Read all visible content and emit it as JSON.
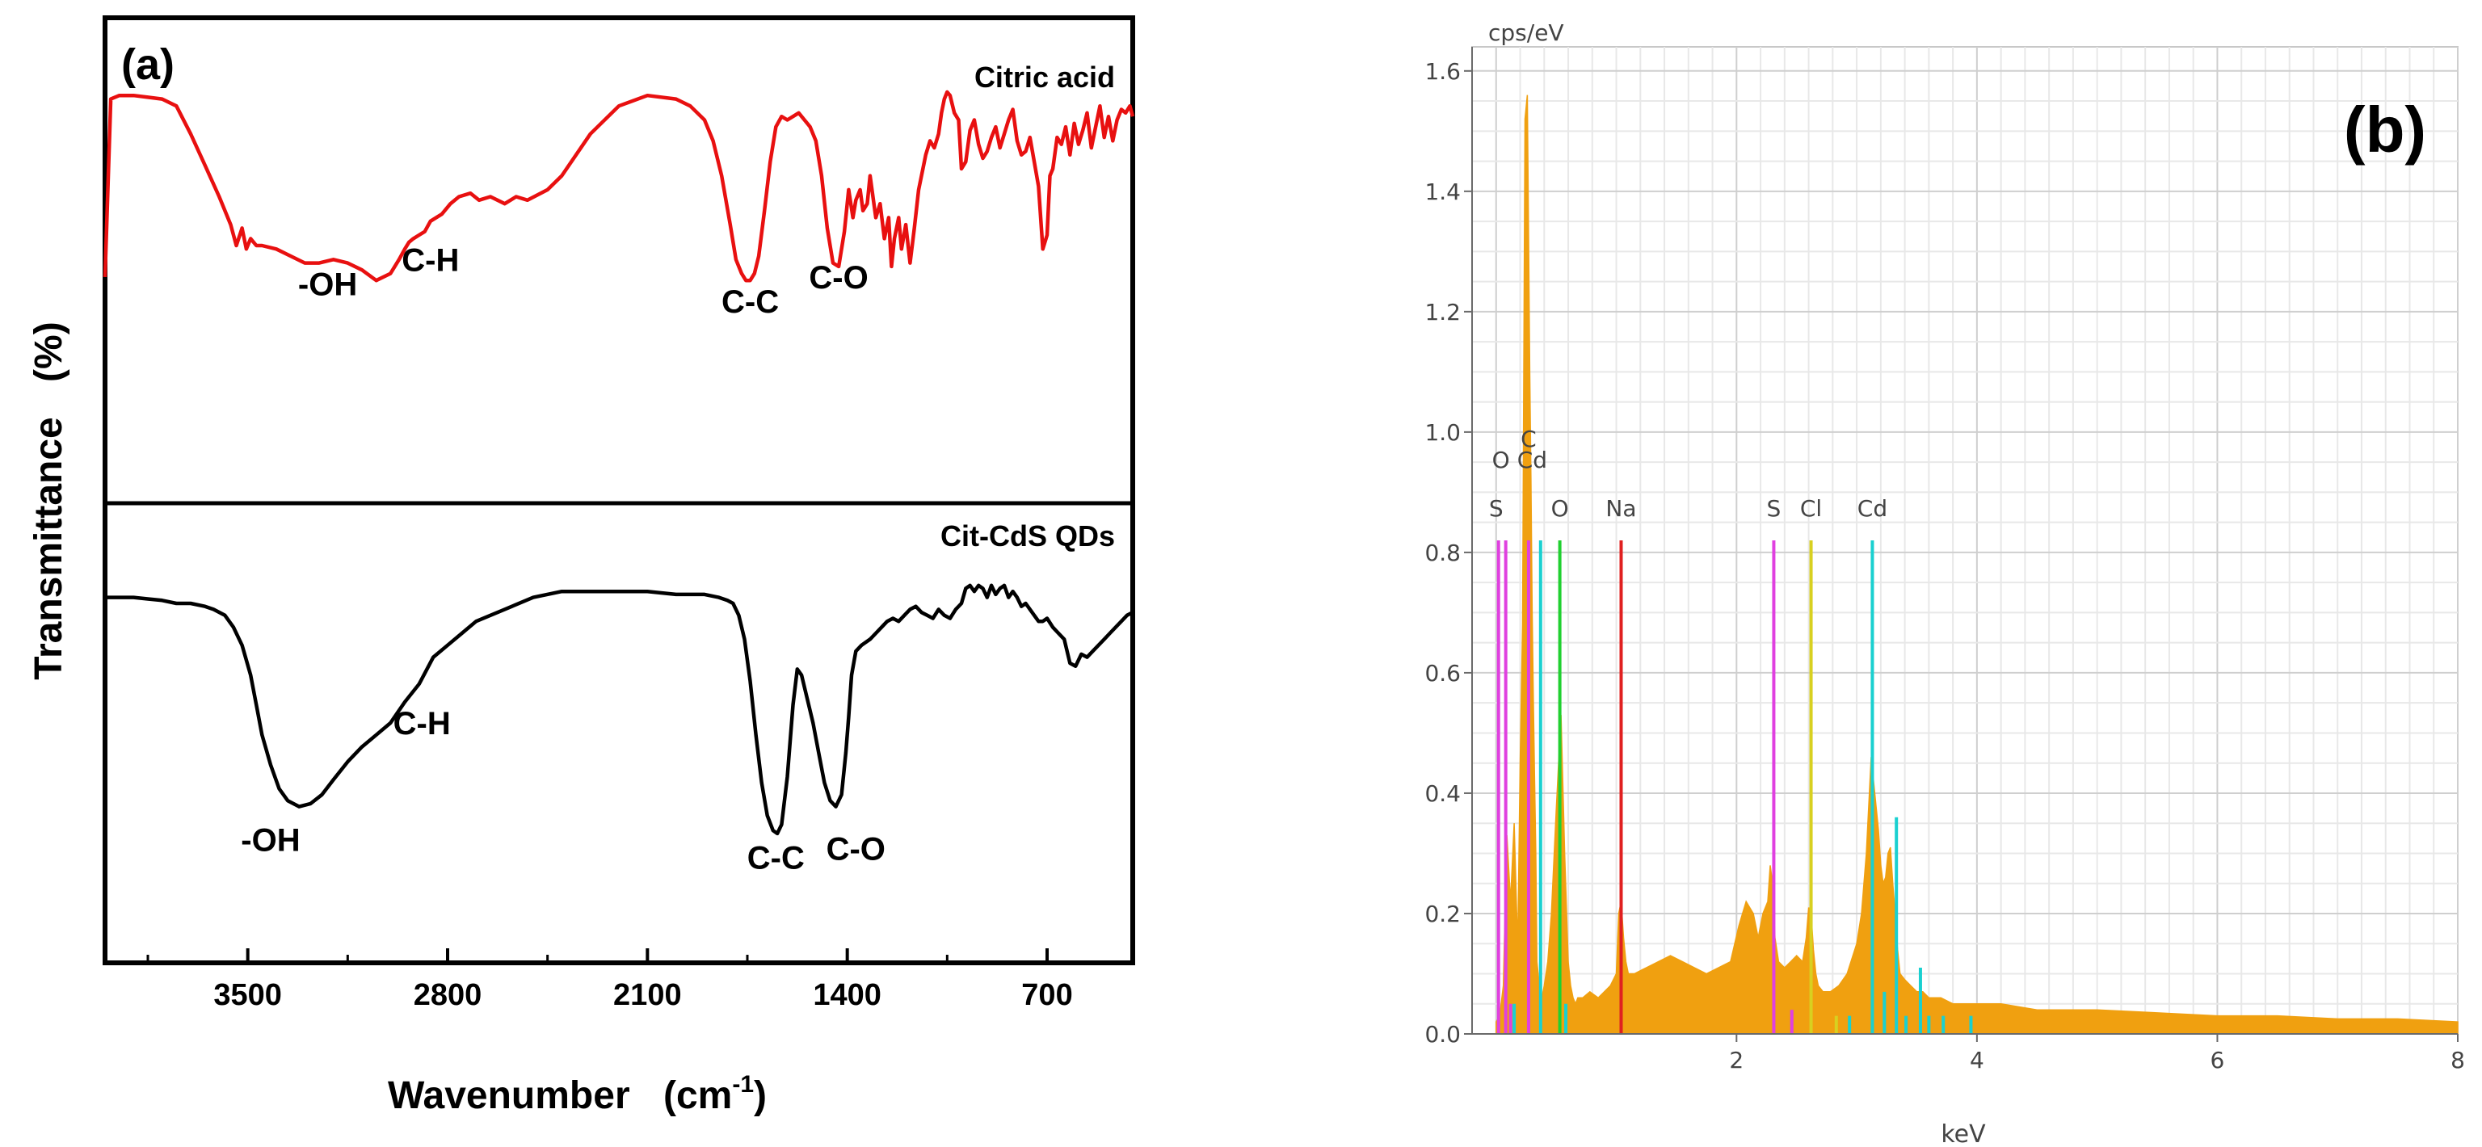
{
  "chart_data": [
    {
      "type": "line",
      "panel_label": "(a)",
      "title": "",
      "xlabel": "Wavenumber",
      "xlabel_unit": "(cm",
      "xlabel_unit_sup": "-1",
      "xlabel_unit_close": ")",
      "ylabel": "Transmittance",
      "ylabel_unit": "(%)",
      "xlim": [
        4000,
        400
      ],
      "xticks": [
        3500,
        2800,
        2100,
        1400,
        700
      ],
      "xtick_labels": [
        "3500",
        "2800",
        "2100",
        "1400",
        "700"
      ],
      "grid": false,
      "subplots": [
        {
          "name": "Citric acid",
          "color": "#e81010",
          "ylim": [
            0,
            1
          ],
          "annotations": [
            {
              "text": "-OH",
              "x": 3220,
              "y": 0.39
            },
            {
              "text": "C-H",
              "x": 2860,
              "y": 0.46
            },
            {
              "text": "C-C",
              "x": 1740,
              "y": 0.34
            },
            {
              "text": "C-O",
              "x": 1430,
              "y": 0.41
            }
          ],
          "x": [
            4000,
            3980,
            3950,
            3900,
            3850,
            3800,
            3750,
            3700,
            3650,
            3600,
            3560,
            3540,
            3520,
            3505,
            3490,
            3470,
            3450,
            3400,
            3350,
            3300,
            3250,
            3200,
            3150,
            3100,
            3050,
            3000,
            2970,
            2950,
            2935,
            2920,
            2900,
            2880,
            2860,
            2820,
            2790,
            2760,
            2720,
            2690,
            2650,
            2600,
            2560,
            2520,
            2450,
            2400,
            2300,
            2200,
            2100,
            2000,
            1950,
            1900,
            1870,
            1840,
            1810,
            1790,
            1770,
            1755,
            1740,
            1725,
            1710,
            1690,
            1670,
            1650,
            1630,
            1610,
            1590,
            1570,
            1550,
            1530,
            1510,
            1490,
            1470,
            1450,
            1430,
            1410,
            1395,
            1380,
            1370,
            1355,
            1345,
            1330,
            1320,
            1300,
            1285,
            1270,
            1255,
            1245,
            1235,
            1220,
            1210,
            1195,
            1180,
            1165,
            1150,
            1135,
            1125,
            1110,
            1095,
            1080,
            1070,
            1060,
            1050,
            1040,
            1025,
            1010,
            1000,
            985,
            970,
            955,
            940,
            925,
            910,
            895,
            880,
            865,
            850,
            835,
            820,
            805,
            790,
            775,
            760,
            745,
            730,
            715,
            700,
            690,
            680,
            665,
            650,
            635,
            620,
            605,
            590,
            575,
            560,
            545,
            530,
            515,
            500,
            485,
            470,
            455,
            440,
            425,
            410,
            400
          ],
          "y": [
            0.41,
            0.92,
            0.93,
            0.93,
            0.925,
            0.92,
            0.9,
            0.82,
            0.73,
            0.64,
            0.56,
            0.5,
            0.55,
            0.49,
            0.52,
            0.5,
            0.5,
            0.49,
            0.47,
            0.45,
            0.45,
            0.46,
            0.45,
            0.43,
            0.4,
            0.42,
            0.46,
            0.49,
            0.51,
            0.52,
            0.53,
            0.54,
            0.57,
            0.59,
            0.62,
            0.64,
            0.65,
            0.63,
            0.64,
            0.62,
            0.64,
            0.63,
            0.66,
            0.7,
            0.82,
            0.9,
            0.93,
            0.92,
            0.9,
            0.86,
            0.8,
            0.7,
            0.56,
            0.46,
            0.42,
            0.4,
            0.4,
            0.42,
            0.47,
            0.6,
            0.74,
            0.84,
            0.87,
            0.86,
            0.87,
            0.88,
            0.86,
            0.84,
            0.8,
            0.7,
            0.55,
            0.45,
            0.44,
            0.54,
            0.66,
            0.58,
            0.63,
            0.66,
            0.6,
            0.62,
            0.7,
            0.58,
            0.62,
            0.52,
            0.58,
            0.44,
            0.52,
            0.58,
            0.49,
            0.56,
            0.45,
            0.55,
            0.66,
            0.72,
            0.76,
            0.8,
            0.78,
            0.82,
            0.88,
            0.92,
            0.94,
            0.93,
            0.88,
            0.86,
            0.72,
            0.74,
            0.83,
            0.86,
            0.79,
            0.75,
            0.77,
            0.81,
            0.84,
            0.78,
            0.82,
            0.86,
            0.89,
            0.8,
            0.76,
            0.77,
            0.81,
            0.74,
            0.67,
            0.49,
            0.53,
            0.7,
            0.72,
            0.81,
            0.79,
            0.84,
            0.76,
            0.85,
            0.79,
            0.83,
            0.88,
            0.78,
            0.84,
            0.9,
            0.81,
            0.87,
            0.8,
            0.86,
            0.89,
            0.88,
            0.9,
            0.87
          ]
        },
        {
          "name": "Cit-CdS QDs",
          "color": "#000000",
          "ylim": [
            0,
            1
          ],
          "annotations": [
            {
              "text": "-OH",
              "x": 3420,
              "y": 0.11
            },
            {
              "text": "C-H",
              "x": 2890,
              "y": 0.5
            },
            {
              "text": "C-C",
              "x": 1650,
              "y": 0.05
            },
            {
              "text": "C-O",
              "x": 1370,
              "y": 0.08
            }
          ],
          "x": [
            4000,
            3950,
            3900,
            3850,
            3800,
            3750,
            3700,
            3650,
            3620,
            3580,
            3550,
            3520,
            3490,
            3470,
            3450,
            3420,
            3390,
            3360,
            3320,
            3280,
            3240,
            3200,
            3150,
            3100,
            3050,
            3000,
            2950,
            2900,
            2850,
            2800,
            2750,
            2700,
            2600,
            2500,
            2400,
            2300,
            2200,
            2100,
            2000,
            1950,
            1900,
            1850,
            1820,
            1800,
            1780,
            1760,
            1740,
            1720,
            1700,
            1680,
            1660,
            1645,
            1630,
            1610,
            1590,
            1575,
            1560,
            1540,
            1520,
            1500,
            1480,
            1460,
            1440,
            1420,
            1405,
            1395,
            1385,
            1370,
            1350,
            1320,
            1300,
            1280,
            1260,
            1240,
            1220,
            1200,
            1180,
            1160,
            1140,
            1120,
            1100,
            1080,
            1060,
            1040,
            1020,
            1000,
            985,
            970,
            955,
            940,
            925,
            910,
            895,
            880,
            865,
            850,
            835,
            820,
            805,
            790,
            775,
            760,
            745,
            730,
            715,
            700,
            680,
            660,
            640,
            620,
            600,
            580,
            560,
            540,
            520,
            500,
            480,
            460,
            440,
            420,
            400
          ],
          "y": [
            0.92,
            0.92,
            0.92,
            0.915,
            0.91,
            0.9,
            0.9,
            0.89,
            0.88,
            0.86,
            0.82,
            0.76,
            0.66,
            0.56,
            0.46,
            0.36,
            0.28,
            0.24,
            0.22,
            0.23,
            0.26,
            0.31,
            0.37,
            0.42,
            0.46,
            0.5,
            0.57,
            0.63,
            0.72,
            0.76,
            0.8,
            0.84,
            0.88,
            0.92,
            0.94,
            0.94,
            0.94,
            0.94,
            0.93,
            0.93,
            0.93,
            0.92,
            0.91,
            0.9,
            0.86,
            0.78,
            0.64,
            0.46,
            0.3,
            0.19,
            0.14,
            0.13,
            0.16,
            0.32,
            0.56,
            0.68,
            0.66,
            0.58,
            0.5,
            0.4,
            0.3,
            0.24,
            0.22,
            0.26,
            0.4,
            0.52,
            0.66,
            0.74,
            0.76,
            0.78,
            0.8,
            0.82,
            0.84,
            0.85,
            0.84,
            0.86,
            0.88,
            0.89,
            0.87,
            0.86,
            0.85,
            0.88,
            0.86,
            0.85,
            0.88,
            0.9,
            0.95,
            0.96,
            0.94,
            0.96,
            0.95,
            0.92,
            0.96,
            0.93,
            0.95,
            0.96,
            0.92,
            0.94,
            0.92,
            0.89,
            0.9,
            0.88,
            0.86,
            0.84,
            0.84,
            0.85,
            0.82,
            0.8,
            0.78,
            0.7,
            0.69,
            0.73,
            0.72,
            0.74,
            0.76,
            0.78,
            0.8,
            0.82,
            0.84,
            0.86,
            0.87
          ]
        }
      ]
    },
    {
      "type": "bar",
      "panel_label": "(b)",
      "title": "",
      "ylabel": "cps/eV",
      "xlabel": "keV",
      "xlim": [
        -0.2,
        8
      ],
      "ylim": [
        0,
        1.64
      ],
      "xticks": [
        2,
        4,
        6,
        8
      ],
      "xtick_labels": [
        "2",
        "4",
        "6",
        "8"
      ],
      "yticks": [
        0.0,
        0.2,
        0.4,
        0.6,
        0.8,
        1.0,
        1.2,
        1.4,
        1.6
      ],
      "ytick_labels": [
        "0.0",
        "0.2",
        "0.4",
        "0.6",
        "0.8",
        "1.0",
        "1.2",
        "1.4",
        "1.6"
      ],
      "grid": true,
      "spectrum_color": "#f0a010",
      "spectrum": {
        "x": [
          0.0,
          0.03,
          0.06,
          0.09,
          0.12,
          0.15,
          0.18,
          0.2,
          0.22,
          0.24,
          0.26,
          0.27,
          0.28,
          0.29,
          0.3,
          0.31,
          0.32,
          0.33,
          0.34,
          0.36,
          0.38,
          0.4,
          0.43,
          0.46,
          0.5,
          0.54,
          0.57,
          0.6,
          0.62,
          0.64,
          0.66,
          0.68,
          0.72,
          0.78,
          0.85,
          0.95,
          1.0,
          1.02,
          1.04,
          1.06,
          1.08,
          1.1,
          1.15,
          1.25,
          1.35,
          1.45,
          1.55,
          1.65,
          1.75,
          1.85,
          1.95,
          2.02,
          2.08,
          2.14,
          2.18,
          2.22,
          2.26,
          2.28,
          2.3,
          2.32,
          2.35,
          2.4,
          2.45,
          2.5,
          2.55,
          2.58,
          2.6,
          2.62,
          2.64,
          2.66,
          2.68,
          2.72,
          2.78,
          2.85,
          2.92,
          3.0,
          3.04,
          3.08,
          3.1,
          3.12,
          3.14,
          3.16,
          3.18,
          3.2,
          3.22,
          3.24,
          3.26,
          3.28,
          3.3,
          3.32,
          3.34,
          3.36,
          3.4,
          3.45,
          3.5,
          3.55,
          3.6,
          3.7,
          3.8,
          3.9,
          4.0,
          4.2,
          4.5,
          4.8,
          5.0,
          5.5,
          6.0,
          6.5,
          7.0,
          7.5,
          8.0
        ],
        "y": [
          0.02,
          0.03,
          0.08,
          0.33,
          0.22,
          0.35,
          0.14,
          0.45,
          0.68,
          1.52,
          1.56,
          1.33,
          1.1,
          0.92,
          0.7,
          0.55,
          0.42,
          0.3,
          0.12,
          0.08,
          0.06,
          0.08,
          0.12,
          0.2,
          0.37,
          0.53,
          0.3,
          0.12,
          0.08,
          0.06,
          0.05,
          0.06,
          0.06,
          0.07,
          0.06,
          0.08,
          0.1,
          0.2,
          0.22,
          0.16,
          0.12,
          0.1,
          0.1,
          0.11,
          0.12,
          0.13,
          0.12,
          0.11,
          0.1,
          0.11,
          0.12,
          0.18,
          0.22,
          0.2,
          0.16,
          0.2,
          0.22,
          0.28,
          0.25,
          0.16,
          0.12,
          0.11,
          0.12,
          0.13,
          0.12,
          0.16,
          0.21,
          0.2,
          0.14,
          0.1,
          0.08,
          0.07,
          0.07,
          0.08,
          0.1,
          0.15,
          0.2,
          0.3,
          0.38,
          0.46,
          0.42,
          0.38,
          0.34,
          0.28,
          0.25,
          0.26,
          0.3,
          0.31,
          0.25,
          0.2,
          0.14,
          0.1,
          0.09,
          0.08,
          0.07,
          0.07,
          0.06,
          0.06,
          0.05,
          0.05,
          0.05,
          0.05,
          0.04,
          0.04,
          0.04,
          0.035,
          0.03,
          0.03,
          0.025,
          0.025,
          0.02
        ]
      },
      "element_lines": [
        {
          "label": "S",
          "x": 0.02,
          "color": "#e040e0",
          "height": 0.82
        },
        {
          "label": "O",
          "x": 0.08,
          "color": "#e040e0",
          "height": 0.82
        },
        {
          "label": "C",
          "x": 0.27,
          "color": "#e040e0",
          "height": 0.82
        },
        {
          "label": "Cd",
          "x": 0.37,
          "color": "#1ad0d0",
          "height": 0.82
        },
        {
          "label": "O",
          "x": 0.53,
          "color": "#20d030",
          "height": 0.82
        },
        {
          "label": "Na",
          "x": 1.04,
          "color": "#e02020",
          "height": 0.82
        },
        {
          "label": "S",
          "x": 2.31,
          "color": "#e040e0",
          "height": 0.82
        },
        {
          "label": "Cl",
          "x": 2.62,
          "color": "#d8d020",
          "height": 0.82
        },
        {
          "label": "Cd",
          "x": 3.13,
          "color": "#1ad0d0",
          "height": 0.82
        }
      ],
      "label_rows": {
        "row1": [
          "S",
          "O",
          "Na",
          "S",
          "Cl",
          "Cd"
        ],
        "overlap_labels": [
          "O",
          "C",
          "Cd"
        ]
      },
      "minor_lines": [
        {
          "x": 0.12,
          "color": "#e040e0",
          "height": 0.05
        },
        {
          "x": 0.15,
          "color": "#1ad0d0",
          "height": 0.05
        },
        {
          "x": 0.58,
          "color": "#1ad0d0",
          "height": 0.05
        },
        {
          "x": 2.46,
          "color": "#e040e0",
          "height": 0.04
        },
        {
          "x": 2.83,
          "color": "#d8d020",
          "height": 0.03
        },
        {
          "x": 2.94,
          "color": "#1ad0d0",
          "height": 0.03
        },
        {
          "x": 3.23,
          "color": "#1ad0d0",
          "height": 0.07
        },
        {
          "x": 3.33,
          "color": "#1ad0d0",
          "height": 0.36
        },
        {
          "x": 3.41,
          "color": "#1ad0d0",
          "height": 0.03
        },
        {
          "x": 3.53,
          "color": "#1ad0d0",
          "height": 0.11
        },
        {
          "x": 3.6,
          "color": "#1ad0d0",
          "height": 0.03
        },
        {
          "x": 3.72,
          "color": "#1ad0d0",
          "height": 0.03
        },
        {
          "x": 3.95,
          "color": "#1ad0d0",
          "height": 0.03
        }
      ]
    }
  ]
}
